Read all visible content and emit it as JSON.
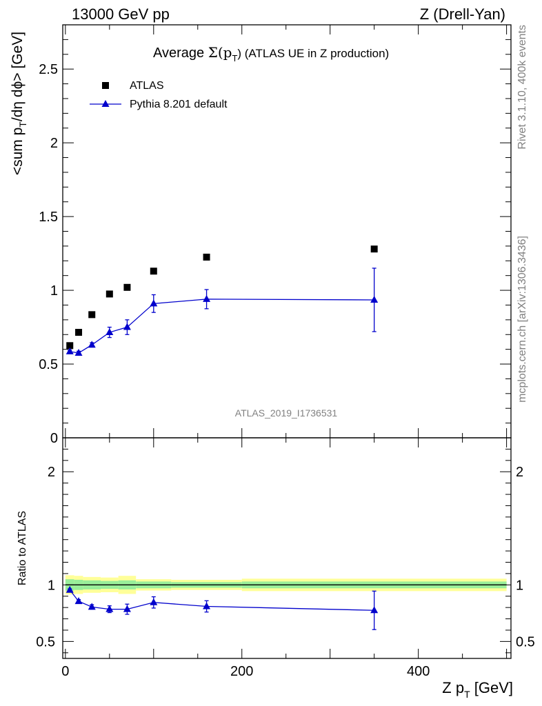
{
  "header": {
    "left": "13000 GeV pp",
    "right": "Z (Drell-Yan)"
  },
  "side_labels": {
    "upper": "Rivet 3.1.10,  400k events",
    "lower": "mcplots.cern.ch [arXiv:1306.3436]"
  },
  "watermark": "ATLAS_2019_I1736531",
  "chart_data": [
    {
      "type": "scatter",
      "title": "Average Σ(pT) (ATLAS UE in Z production)",
      "title_parts": {
        "prefix": "Average ",
        "sym": "Σ(p",
        "sub": "T",
        "suffix": ") (ATLAS UE in Z production)"
      },
      "xlim": [
        -3,
        505
      ],
      "ylim": [
        0,
        2.8
      ],
      "ylabel": "<sum pT/dη dϕ> [GeV]",
      "ylabel_parts": {
        "a": "<sum p",
        "sub": "T",
        "b": "/dη dϕ> [GeV]"
      },
      "yticks": [
        0,
        0.5,
        1,
        1.5,
        2,
        2.5
      ],
      "ytick_labels": [
        "0",
        "0.5",
        "1",
        "1.5",
        "2",
        "2.5"
      ],
      "legend": {
        "placement": "top-left",
        "entries": [
          "ATLAS",
          "Pythia 8.201 default"
        ]
      },
      "series": [
        {
          "name": "ATLAS",
          "marker": "square",
          "color": "#000000",
          "x": [
            5,
            15,
            30,
            50,
            70,
            100,
            160,
            350
          ],
          "y": [
            0.625,
            0.715,
            0.835,
            0.975,
            1.02,
            1.13,
            1.225,
            1.28
          ]
        },
        {
          "name": "Pythia 8.201 default",
          "marker": "triangle",
          "color": "#0000cc",
          "x": [
            5,
            15,
            30,
            50,
            70,
            100,
            160,
            350
          ],
          "y": [
            0.585,
            0.575,
            0.63,
            0.715,
            0.75,
            0.91,
            0.94,
            0.935
          ],
          "yerr": [
            0.01,
            0.012,
            0.015,
            0.035,
            0.05,
            0.06,
            0.065,
            0.215
          ]
        }
      ]
    },
    {
      "type": "scatter",
      "ylabel": "Ratio to ATLAS",
      "xlabel": "Z pT [GeV]",
      "xlabel_parts": {
        "a": "Z p",
        "sub": "T",
        "b": " [GeV]"
      },
      "xlim": [
        -3,
        505
      ],
      "ylim": [
        0.35,
        2.3
      ],
      "yticks": [
        0.5,
        1,
        2
      ],
      "ytick_labels": [
        "0.5",
        "1",
        "2"
      ],
      "xticks": [
        0,
        200,
        400
      ],
      "xtick_labels": [
        "0",
        "200",
        "400"
      ],
      "reference_line": 1,
      "uncertainty_bands": {
        "edges": [
          0,
          10,
          20,
          40,
          60,
          80,
          120,
          200,
          500
        ],
        "inner": [
          0.05,
          0.045,
          0.04,
          0.035,
          0.04,
          0.03,
          0.025,
          0.03
        ],
        "outer": [
          0.085,
          0.08,
          0.07,
          0.065,
          0.08,
          0.05,
          0.045,
          0.055
        ],
        "inner_color": "#99ee99",
        "outer_color": "#ffff99"
      },
      "series": [
        {
          "name": "Pythia 8.201 default",
          "marker": "triangle",
          "color": "#0000cc",
          "x": [
            5,
            15,
            30,
            50,
            70,
            100,
            160,
            350
          ],
          "y": [
            0.955,
            0.855,
            0.805,
            0.785,
            0.785,
            0.845,
            0.81,
            0.775
          ],
          "yerr": [
            0.01,
            0.015,
            0.02,
            0.03,
            0.045,
            0.05,
            0.05,
            0.17
          ]
        }
      ]
    }
  ]
}
